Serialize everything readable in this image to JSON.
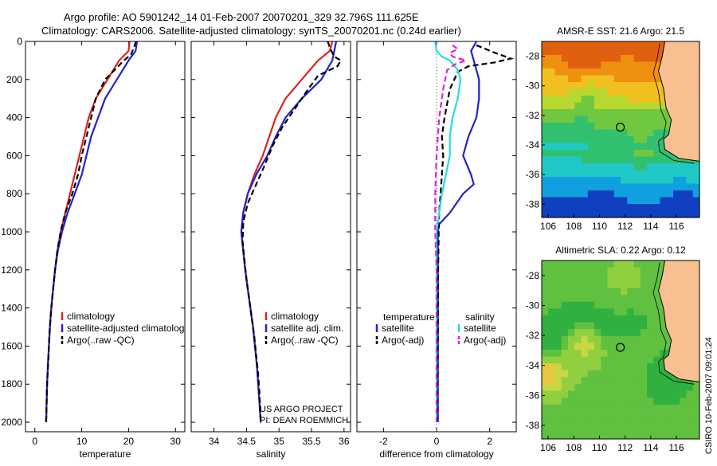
{
  "header": {
    "title_line1": "Argo profile: AO 5901242_14 01-Feb-2007 20070201_329 32.796S 111.625E",
    "title_line2": "Climatology: CARS2006. Satellite-adjusted climatology: synTS_20070201.nc (0.24d earlier)"
  },
  "colors": {
    "climatology": "#dd2222",
    "satellite": "#2222cc",
    "argo": "#000000",
    "temp_sat_diff": "#2222cc",
    "sal_sat_diff": "#22dddd",
    "sal_argo_diff": "#dd22dd",
    "land": "#f8c090"
  },
  "credits": {
    "project": "US ARGO PROJECT",
    "pi": "PI: DEAN ROEMMICH",
    "csiro_stamp": "CSIRO 10-Feb-2007 09:01:24"
  },
  "chart_data": [
    {
      "type": "line",
      "id": "temperature",
      "title": "",
      "xlabel": "temperature",
      "ylabel": "",
      "xlim": [
        -2,
        32
      ],
      "ylim": [
        0,
        2050
      ],
      "y_reversed": true,
      "xticks": [
        0,
        10,
        20,
        30
      ],
      "yticks": [
        0,
        200,
        400,
        600,
        800,
        1000,
        1200,
        1400,
        1600,
        1800,
        2000
      ],
      "legend_position": "lower-right",
      "series": [
        {
          "name": "climatology",
          "style": "solid",
          "color_key": "climatology",
          "points": [
            [
              20.2,
              0
            ],
            [
              20,
              50
            ],
            [
              18,
              100
            ],
            [
              15.5,
              200
            ],
            [
              13,
              300
            ],
            [
              11.5,
              400
            ],
            [
              10.5,
              500
            ],
            [
              9.5,
              600
            ],
            [
              8.5,
              700
            ],
            [
              7.5,
              800
            ],
            [
              6.5,
              900
            ],
            [
              5.5,
              1000
            ],
            [
              4.8,
              1100
            ],
            [
              4.3,
              1200
            ],
            [
              3.9,
              1300
            ],
            [
              3.5,
              1400
            ],
            [
              3.2,
              1500
            ],
            [
              3,
              1600
            ],
            [
              2.8,
              1700
            ],
            [
              2.6,
              1800
            ],
            [
              2.5,
              1900
            ],
            [
              2.4,
              2000
            ]
          ]
        },
        {
          "name": "satellite-adjusted climatology",
          "style": "solid",
          "color_key": "satellite",
          "points": [
            [
              21.8,
              0
            ],
            [
              21.5,
              50
            ],
            [
              20,
              100
            ],
            [
              17.5,
              200
            ],
            [
              15,
              300
            ],
            [
              13.5,
              400
            ],
            [
              12,
              500
            ],
            [
              11,
              600
            ],
            [
              10,
              700
            ],
            [
              8.5,
              800
            ],
            [
              7,
              900
            ],
            [
              5.8,
              1000
            ],
            [
              4.9,
              1100
            ],
            [
              4.3,
              1200
            ],
            [
              3.9,
              1300
            ],
            [
              3.5,
              1400
            ],
            [
              3.2,
              1500
            ],
            [
              3,
              1600
            ],
            [
              2.8,
              1700
            ],
            [
              2.6,
              1800
            ],
            [
              2.5,
              1900
            ],
            [
              2.4,
              2000
            ]
          ]
        },
        {
          "name": "Argo(..raw -QC)",
          "style": "dashed",
          "color_key": "argo",
          "points": [
            [
              21.6,
              0
            ],
            [
              21,
              40
            ],
            [
              20.5,
              70
            ],
            [
              19,
              100
            ],
            [
              17,
              150
            ],
            [
              15,
              200
            ],
            [
              13,
              300
            ],
            [
              12,
              400
            ],
            [
              11,
              500
            ],
            [
              10,
              600
            ],
            [
              9.2,
              700
            ],
            [
              8,
              800
            ],
            [
              6.5,
              900
            ],
            [
              5.5,
              1000
            ],
            [
              4.8,
              1100
            ],
            [
              4.3,
              1200
            ],
            [
              3.9,
              1300
            ],
            [
              3.5,
              1400
            ],
            [
              3.2,
              1500
            ],
            [
              3,
              1600
            ],
            [
              2.8,
              1700
            ],
            [
              2.6,
              1800
            ],
            [
              2.5,
              1900
            ],
            [
              2.4,
              2000
            ]
          ]
        }
      ]
    },
    {
      "type": "line",
      "id": "salinity",
      "title": "",
      "xlabel": "salinity",
      "ylabel": "",
      "xlim": [
        33.65,
        36.1
      ],
      "ylim": [
        0,
        2050
      ],
      "y_reversed": true,
      "xticks": [
        34,
        34.5,
        35,
        35.5,
        36
      ],
      "yticks": [
        0,
        200,
        400,
        600,
        800,
        1000,
        1200,
        1400,
        1600,
        1800,
        2000
      ],
      "legend_position": "lower-right",
      "series": [
        {
          "name": "climatology",
          "style": "solid",
          "color_key": "climatology",
          "points": [
            [
              35.82,
              0
            ],
            [
              35.78,
              50
            ],
            [
              35.6,
              100
            ],
            [
              35.35,
              200
            ],
            [
              35.1,
              300
            ],
            [
              34.95,
              400
            ],
            [
              34.85,
              500
            ],
            [
              34.75,
              600
            ],
            [
              34.62,
              700
            ],
            [
              34.52,
              800
            ],
            [
              34.45,
              900
            ],
            [
              34.42,
              1000
            ],
            [
              34.45,
              1100
            ],
            [
              34.48,
              1200
            ],
            [
              34.52,
              1300
            ],
            [
              34.56,
              1400
            ],
            [
              34.6,
              1500
            ],
            [
              34.63,
              1600
            ],
            [
              34.66,
              1700
            ],
            [
              34.68,
              1800
            ],
            [
              34.7,
              1900
            ],
            [
              34.72,
              2000
            ]
          ]
        },
        {
          "name": "satellite adj. clim.",
          "style": "solid",
          "color_key": "satellite",
          "points": [
            [
              35.88,
              0
            ],
            [
              35.85,
              50
            ],
            [
              35.82,
              100
            ],
            [
              35.65,
              200
            ],
            [
              35.35,
              300
            ],
            [
              35.1,
              400
            ],
            [
              34.95,
              500
            ],
            [
              34.82,
              600
            ],
            [
              34.65,
              700
            ],
            [
              34.52,
              800
            ],
            [
              34.45,
              900
            ],
            [
              34.42,
              1000
            ],
            [
              34.45,
              1100
            ],
            [
              34.48,
              1200
            ],
            [
              34.52,
              1300
            ],
            [
              34.56,
              1400
            ],
            [
              34.6,
              1500
            ],
            [
              34.63,
              1600
            ],
            [
              34.66,
              1700
            ],
            [
              34.68,
              1800
            ],
            [
              34.7,
              1900
            ],
            [
              34.72,
              2000
            ]
          ]
        },
        {
          "name": "Argo(..raw -QC)",
          "style": "dashed",
          "color_key": "argo",
          "points": [
            [
              35.75,
              0
            ],
            [
              35.78,
              30
            ],
            [
              35.82,
              60
            ],
            [
              35.85,
              80
            ],
            [
              35.95,
              100
            ],
            [
              35.9,
              130
            ],
            [
              35.6,
              180
            ],
            [
              35.45,
              250
            ],
            [
              35.25,
              350
            ],
            [
              35.05,
              450
            ],
            [
              34.9,
              550
            ],
            [
              34.78,
              650
            ],
            [
              34.65,
              750
            ],
            [
              34.52,
              850
            ],
            [
              34.45,
              950
            ],
            [
              34.44,
              1050
            ],
            [
              34.47,
              1150
            ],
            [
              34.5,
              1250
            ],
            [
              34.54,
              1350
            ],
            [
              34.58,
              1450
            ],
            [
              34.62,
              1550
            ],
            [
              34.65,
              1650
            ],
            [
              34.68,
              1750
            ],
            [
              34.7,
              1850
            ],
            [
              34.72,
              2000
            ]
          ]
        }
      ]
    },
    {
      "type": "line",
      "id": "difference",
      "title": "",
      "xlabel": "difference from climatology",
      "ylabel": "",
      "xlim": [
        -3,
        3
      ],
      "ylim": [
        0,
        2050
      ],
      "y_reversed": true,
      "xticks": [
        -2,
        0,
        2
      ],
      "yticks": [
        0,
        200,
        400,
        600,
        800,
        1000,
        1200,
        1400,
        1600,
        1800,
        2000
      ],
      "legend_position": "lower-right",
      "legend_headers": [
        "temperature",
        "salinity"
      ],
      "series": [
        {
          "name": "satellite",
          "group": "temperature",
          "style": "solid",
          "color_key": "temp_sat_diff",
          "points": [
            [
              1.5,
              0
            ],
            [
              1.3,
              50
            ],
            [
              1.4,
              100
            ],
            [
              1.6,
              200
            ],
            [
              1.6,
              300
            ],
            [
              1.5,
              400
            ],
            [
              1.2,
              500
            ],
            [
              1,
              600
            ],
            [
              1.3,
              700
            ],
            [
              1.4,
              750
            ],
            [
              1,
              800
            ],
            [
              0.5,
              900
            ],
            [
              0.1,
              960
            ],
            [
              0.05,
              1000
            ],
            [
              0.05,
              1200
            ],
            [
              0.05,
              1500
            ],
            [
              0.05,
              2000
            ]
          ]
        },
        {
          "name": "Argo(-adj)",
          "group": "temperature",
          "style": "dashed",
          "color_key": "argo",
          "points": [
            [
              1.5,
              20
            ],
            [
              2.2,
              60
            ],
            [
              2.8,
              90
            ],
            [
              2.2,
              110
            ],
            [
              1.2,
              130
            ],
            [
              0.8,
              160
            ],
            [
              0.5,
              250
            ],
            [
              0.3,
              400
            ],
            [
              0.2,
              500
            ],
            [
              0.25,
              600
            ],
            [
              0.2,
              700
            ],
            [
              0.15,
              800
            ],
            [
              0.1,
              900
            ],
            [
              0.08,
              1000
            ],
            [
              0.06,
              1200
            ],
            [
              0.05,
              1500
            ],
            [
              0.03,
              2000
            ]
          ]
        },
        {
          "name": "satellite",
          "group": "salinity",
          "style": "solid",
          "color_key": "sal_sat_diff",
          "points": [
            [
              -0.05,
              0
            ],
            [
              0,
              50
            ],
            [
              0.2,
              80
            ],
            [
              0.5,
              100
            ],
            [
              0.8,
              150
            ],
            [
              0.9,
              200
            ],
            [
              0.8,
              300
            ],
            [
              0.6,
              400
            ],
            [
              0.5,
              500
            ],
            [
              0.5,
              600
            ],
            [
              0.35,
              700
            ],
            [
              0.2,
              800
            ],
            [
              0.1,
              900
            ],
            [
              0,
              1000
            ],
            [
              0,
              1500
            ],
            [
              0,
              2000
            ]
          ]
        },
        {
          "name": "Argo(-adj)",
          "group": "salinity",
          "style": "dashed",
          "color_key": "sal_argo_diff",
          "points": [
            [
              0.6,
              20
            ],
            [
              0.8,
              40
            ],
            [
              0.5,
              60
            ],
            [
              0.6,
              80
            ],
            [
              1.1,
              100
            ],
            [
              0.7,
              120
            ],
            [
              0.4,
              150
            ],
            [
              0.25,
              250
            ],
            [
              0.1,
              400
            ],
            [
              0,
              600
            ],
            [
              -0.05,
              800
            ],
            [
              -0.05,
              1000
            ],
            [
              0,
              1200
            ],
            [
              0,
              1500
            ],
            [
              0,
              2000
            ]
          ]
        }
      ]
    },
    {
      "type": "heatmap",
      "id": "sst_map",
      "title": "AMSR-E SST: 21.6 Argo: 21.5",
      "xlim": [
        105.5,
        117.8
      ],
      "ylim": [
        -38.9,
        -27
      ],
      "xticks": [
        106,
        108,
        110,
        112,
        114,
        116
      ],
      "yticks": [
        -28,
        -30,
        -32,
        -34,
        -36,
        -38
      ],
      "xtick_labels": [
        "106",
        "108",
        "110",
        "112",
        "114",
        "116"
      ],
      "ytick_labels": [
        "-28",
        "-30",
        "-32",
        "-34",
        "-36",
        "-38"
      ],
      "float_position": [
        111.625,
        -32.796
      ],
      "palette": [
        "#1040c0",
        "#10a0e0",
        "#20c8c8",
        "#30c070",
        "#70c840",
        "#b8d830",
        "#f0c020",
        "#f09010",
        "#e06010"
      ]
    },
    {
      "type": "heatmap",
      "id": "sla_map",
      "title": "Altimetric SLA: 0.22 Argo: 0.12",
      "xlim": [
        105.5,
        117.8
      ],
      "ylim": [
        -38.9,
        -27
      ],
      "xticks": [
        106,
        108,
        110,
        112,
        114,
        116
      ],
      "yticks": [
        -28,
        -30,
        -32,
        -34,
        -36,
        -38
      ],
      "xtick_labels": [
        "106",
        "108",
        "110",
        "112",
        "114",
        "116"
      ],
      "ytick_labels": [
        "-28",
        "-30",
        "-32",
        "-34",
        "-36",
        "-38"
      ],
      "float_position": [
        111.625,
        -32.796
      ],
      "palette": [
        "#30b040",
        "#60c040",
        "#90d040",
        "#c8d840",
        "#e8c840",
        "#f0a040"
      ]
    }
  ]
}
